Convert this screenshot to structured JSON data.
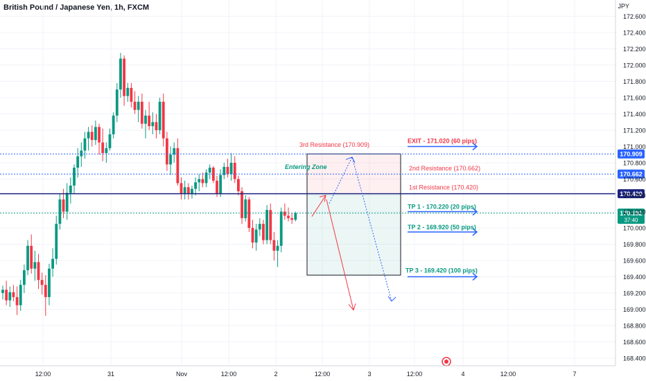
{
  "header": {
    "title": "British Pound / Japanese Yen, 1h, FXCM",
    "currency": "JPY"
  },
  "chart_data": {
    "type": "candlestick",
    "symbol": "GBPJPY",
    "timeframe": "1h",
    "ylim": [
      168.35,
      172.65
    ],
    "y_ticks": [
      "172.600",
      "172.400",
      "172.200",
      "172.000",
      "171.800",
      "171.600",
      "171.400",
      "171.200",
      "171.000",
      "170.800",
      "170.600",
      "170.400",
      "170.200",
      "170.000",
      "169.800",
      "169.600",
      "169.400",
      "169.200",
      "169.000",
      "168.800",
      "168.600",
      "168.400"
    ],
    "x_ticks": [
      "12:00",
      "31",
      "Nov",
      "12:00",
      "2",
      "12:00",
      "3",
      "12:00",
      "4",
      "12:00",
      "7"
    ],
    "candles": [
      [
        169.2,
        169.29,
        169.12,
        169.24
      ],
      [
        169.24,
        169.35,
        169.05,
        169.11
      ],
      [
        169.11,
        169.28,
        169.03,
        169.21
      ],
      [
        169.21,
        169.3,
        169.1,
        169.15
      ],
      [
        169.15,
        169.28,
        168.93,
        169.05
      ],
      [
        169.05,
        169.36,
        168.98,
        169.3
      ],
      [
        169.3,
        169.55,
        169.2,
        169.48
      ],
      [
        169.48,
        169.85,
        169.42,
        169.78
      ],
      [
        169.78,
        169.92,
        169.44,
        169.5
      ],
      [
        169.5,
        169.72,
        169.35,
        169.58
      ],
      [
        169.58,
        169.68,
        169.25,
        169.36
      ],
      [
        169.36,
        169.45,
        169.18,
        169.3
      ],
      [
        169.3,
        169.42,
        168.92,
        169.15
      ],
      [
        169.15,
        169.56,
        169.05,
        169.5
      ],
      [
        169.5,
        169.75,
        169.4,
        169.62
      ],
      [
        169.62,
        170.15,
        169.55,
        170.05
      ],
      [
        170.05,
        170.42,
        169.98,
        170.35
      ],
      [
        170.35,
        170.48,
        170.12,
        170.2
      ],
      [
        170.2,
        170.55,
        170.1,
        170.43
      ],
      [
        170.43,
        170.62,
        170.3,
        170.52
      ],
      [
        170.52,
        170.78,
        170.42,
        170.74
      ],
      [
        170.74,
        170.98,
        170.62,
        170.88
      ],
      [
        170.88,
        171.05,
        170.75,
        170.95
      ],
      [
        170.95,
        171.18,
        170.85,
        171.1
      ],
      [
        171.1,
        171.24,
        170.95,
        171.18
      ],
      [
        171.18,
        171.26,
        171.0,
        171.08
      ],
      [
        171.08,
        171.32,
        171.02,
        171.24
      ],
      [
        171.24,
        171.28,
        170.9,
        171.05
      ],
      [
        171.05,
        171.22,
        170.82,
        170.92
      ],
      [
        170.92,
        171.05,
        170.8,
        170.98
      ],
      [
        170.98,
        171.22,
        170.95,
        171.15
      ],
      [
        171.15,
        171.42,
        171.1,
        171.38
      ],
      [
        171.38,
        171.78,
        171.3,
        171.7
      ],
      [
        171.7,
        172.15,
        171.6,
        172.08
      ],
      [
        172.08,
        172.12,
        171.5,
        171.62
      ],
      [
        171.62,
        171.78,
        171.55,
        171.72
      ],
      [
        171.72,
        171.78,
        171.48,
        171.55
      ],
      [
        171.55,
        171.68,
        171.4,
        171.45
      ],
      [
        171.45,
        171.62,
        171.3,
        171.55
      ],
      [
        171.55,
        171.65,
        171.22,
        171.28
      ],
      [
        171.28,
        171.45,
        171.1,
        171.38
      ],
      [
        171.38,
        171.55,
        171.2,
        171.25
      ],
      [
        171.25,
        171.42,
        171.15,
        171.3
      ],
      [
        171.3,
        171.4,
        171.1,
        171.2
      ],
      [
        171.2,
        171.6,
        171.15,
        171.55
      ],
      [
        171.55,
        171.65,
        171.0,
        171.1
      ],
      [
        171.1,
        171.18,
        170.7,
        170.78
      ],
      [
        170.78,
        171.0,
        170.65,
        170.9
      ],
      [
        170.9,
        171.05,
        170.8,
        170.98
      ],
      [
        170.98,
        171.1,
        170.52,
        170.55
      ],
      [
        170.55,
        170.62,
        170.35,
        170.42
      ],
      [
        170.42,
        170.58,
        170.35,
        170.5
      ],
      [
        170.5,
        170.55,
        170.35,
        170.42
      ],
      [
        170.42,
        170.52,
        170.36,
        170.48
      ],
      [
        170.48,
        170.62,
        170.4,
        170.56
      ],
      [
        170.56,
        170.66,
        170.45,
        170.6
      ],
      [
        170.6,
        170.68,
        170.5,
        170.55
      ],
      [
        170.55,
        170.72,
        170.5,
        170.68
      ],
      [
        170.68,
        170.78,
        170.6,
        170.74
      ],
      [
        170.74,
        170.76,
        170.55,
        170.58
      ],
      [
        170.58,
        170.64,
        170.38,
        170.42
      ],
      [
        170.42,
        170.72,
        170.38,
        170.65
      ],
      [
        170.65,
        170.8,
        170.6,
        170.75
      ],
      [
        170.75,
        170.85,
        170.62,
        170.66
      ],
      [
        170.66,
        170.92,
        170.58,
        170.8
      ],
      [
        170.8,
        170.88,
        170.55,
        170.6
      ],
      [
        170.6,
        170.64,
        170.4,
        170.45
      ],
      [
        170.45,
        170.5,
        170.05,
        170.12
      ],
      [
        170.12,
        170.4,
        170.08,
        170.35
      ],
      [
        170.35,
        170.38,
        169.95,
        170.0
      ],
      [
        170.0,
        170.1,
        169.75,
        169.82
      ],
      [
        169.82,
        170.05,
        169.72,
        169.98
      ],
      [
        169.98,
        170.12,
        169.9,
        170.05
      ],
      [
        170.05,
        170.1,
        169.8,
        169.85
      ],
      [
        169.85,
        170.28,
        169.8,
        170.22
      ],
      [
        170.22,
        170.3,
        169.8,
        169.85
      ],
      [
        169.85,
        169.95,
        169.6,
        169.72
      ],
      [
        169.72,
        169.85,
        169.52,
        169.78
      ],
      [
        169.78,
        170.25,
        169.7,
        170.2
      ],
      [
        170.2,
        170.3,
        170.1,
        170.15
      ],
      [
        170.15,
        170.25,
        170.08,
        170.12
      ],
      [
        170.12,
        170.18,
        170.05,
        170.1
      ],
      [
        170.1,
        170.2,
        170.08,
        170.18
      ]
    ],
    "levels": [
      {
        "price": 170.909,
        "label": "170.909",
        "style": "dotted",
        "color": "#2962ff"
      },
      {
        "price": 170.662,
        "label": "170.662",
        "style": "dotted",
        "color": "#2962ff"
      },
      {
        "price": 170.42,
        "label": "170.420",
        "style": "solid",
        "color": "#1a237e"
      },
      {
        "price": 170.182,
        "label": "170.182",
        "sublabel": "37:40",
        "style": "dotted",
        "color": "#089981"
      }
    ],
    "annotations": {
      "exit": "EXIT - 171.020 (60 pips)",
      "res3": "3rd Resistance (170.909)",
      "res2": "2nd Resistance (170.662)",
      "res1": "1st Resistance (170.420)",
      "tp1": "TP 1 - 170.220 (20 pips)",
      "tp2": "TP 2 - 169.920 (50 pips)",
      "tp3": "TP 3 - 169.420 (100 pips)",
      "entering_zone": "Entering Zone"
    },
    "colors": {
      "up": "#089981",
      "down": "#f23645",
      "axis_text": "#131722",
      "grid": "#f0f3fa"
    }
  }
}
